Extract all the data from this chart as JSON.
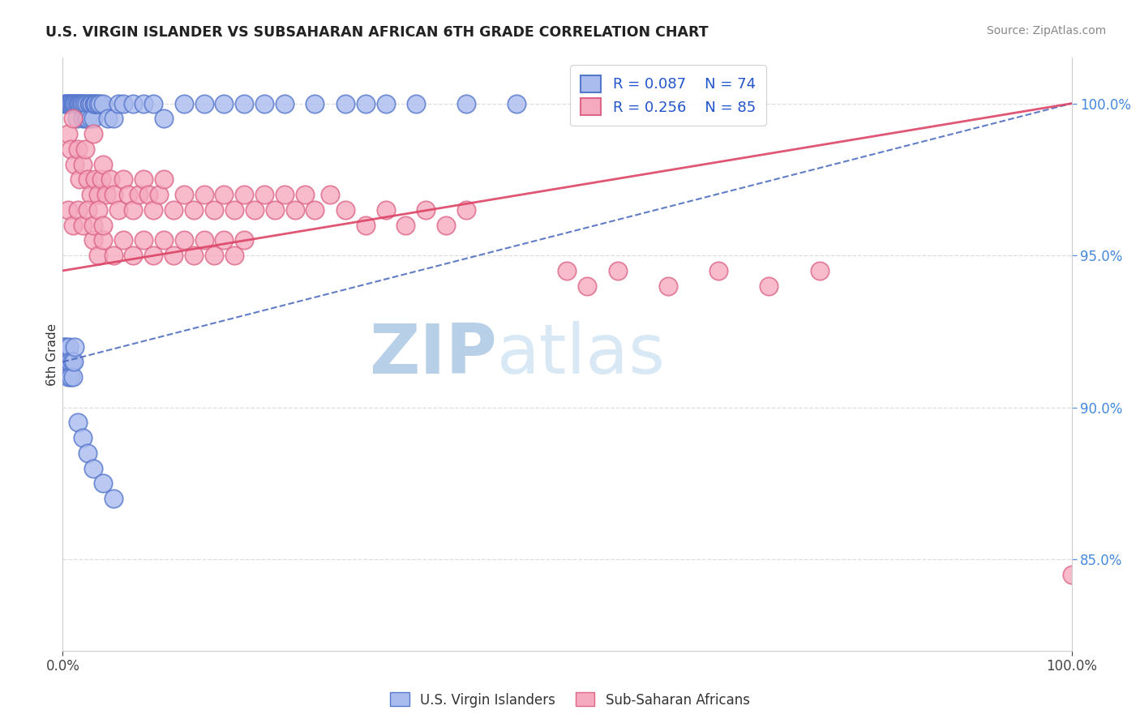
{
  "title": "U.S. VIRGIN ISLANDER VS SUBSAHARAN AFRICAN 6TH GRADE CORRELATION CHART",
  "source": "Source: ZipAtlas.com",
  "ylabel": "6th Grade",
  "right_yticks": [
    85.0,
    90.0,
    95.0,
    100.0
  ],
  "legend_r1": "R = 0.087",
  "legend_n1": "N = 74",
  "legend_r2": "R = 0.256",
  "legend_n2": "N = 85",
  "blue_edge": "#5577cc",
  "blue_face": "#aabbee",
  "pink_edge": "#dd6688",
  "pink_face": "#f5aabf",
  "trend_blue": "#4466bb",
  "trend_pink": "#dd4466",
  "watermark_color": "#ccddf5",
  "grid_color": "#dddddd",
  "background": "#ffffff",
  "blue_x": [
    0.2,
    0.3,
    0.4,
    0.5,
    0.6,
    0.7,
    0.8,
    0.9,
    1.0,
    1.1,
    1.2,
    1.3,
    1.4,
    1.5,
    1.6,
    1.7,
    1.8,
    1.9,
    2.0,
    2.1,
    2.2,
    2.3,
    2.4,
    2.5,
    2.6,
    2.7,
    2.8,
    2.9,
    3.0,
    3.1,
    3.2,
    3.3,
    3.5,
    3.7,
    4.0,
    4.5,
    5.0,
    5.5,
    6.0,
    7.0,
    8.0,
    9.0,
    10.0,
    12.0,
    14.0,
    16.0,
    18.0,
    20.0,
    22.0,
    25.0,
    28.0,
    30.0,
    32.0,
    35.0,
    40.0,
    45.0,
    0.1,
    0.2,
    0.3,
    0.4,
    0.5,
    0.6,
    0.7,
    0.8,
    0.9,
    1.0,
    1.1,
    1.2,
    1.5,
    2.0,
    2.5,
    3.0,
    4.0,
    5.0
  ],
  "blue_y": [
    100.0,
    100.0,
    100.0,
    100.0,
    100.0,
    100.0,
    100.0,
    100.0,
    100.0,
    100.0,
    100.0,
    100.0,
    99.5,
    100.0,
    100.0,
    100.0,
    100.0,
    100.0,
    99.5,
    100.0,
    100.0,
    99.5,
    100.0,
    99.5,
    100.0,
    100.0,
    99.5,
    100.0,
    99.5,
    100.0,
    100.0,
    100.0,
    100.0,
    100.0,
    100.0,
    99.5,
    99.5,
    100.0,
    100.0,
    100.0,
    100.0,
    100.0,
    99.5,
    100.0,
    100.0,
    100.0,
    100.0,
    100.0,
    100.0,
    100.0,
    100.0,
    100.0,
    100.0,
    100.0,
    100.0,
    100.0,
    92.0,
    91.5,
    92.0,
    91.5,
    91.0,
    92.0,
    91.5,
    91.0,
    91.5,
    91.0,
    91.5,
    92.0,
    89.5,
    89.0,
    88.5,
    88.0,
    87.5,
    87.0
  ],
  "pink_x": [
    0.5,
    0.8,
    1.0,
    1.2,
    1.5,
    1.7,
    2.0,
    2.2,
    2.5,
    2.8,
    3.0,
    3.2,
    3.5,
    3.8,
    4.0,
    4.3,
    4.7,
    5.0,
    5.5,
    6.0,
    6.5,
    7.0,
    7.5,
    8.0,
    8.5,
    9.0,
    9.5,
    10.0,
    11.0,
    12.0,
    13.0,
    14.0,
    15.0,
    16.0,
    17.0,
    18.0,
    19.0,
    20.0,
    21.0,
    22.0,
    23.0,
    24.0,
    25.0,
    26.5,
    28.0,
    30.0,
    32.0,
    34.0,
    36.0,
    38.0,
    40.0,
    3.0,
    3.5,
    4.0,
    5.0,
    6.0,
    7.0,
    8.0,
    9.0,
    10.0,
    11.0,
    12.0,
    13.0,
    14.0,
    15.0,
    16.0,
    17.0,
    18.0,
    0.5,
    1.0,
    1.5,
    2.0,
    2.5,
    3.0,
    3.5,
    4.0,
    50.0,
    52.0,
    55.0,
    60.0,
    65.0,
    70.0,
    75.0,
    100.0
  ],
  "pink_y": [
    99.0,
    98.5,
    99.5,
    98.0,
    98.5,
    97.5,
    98.0,
    98.5,
    97.5,
    97.0,
    99.0,
    97.5,
    97.0,
    97.5,
    98.0,
    97.0,
    97.5,
    97.0,
    96.5,
    97.5,
    97.0,
    96.5,
    97.0,
    97.5,
    97.0,
    96.5,
    97.0,
    97.5,
    96.5,
    97.0,
    96.5,
    97.0,
    96.5,
    97.0,
    96.5,
    97.0,
    96.5,
    97.0,
    96.5,
    97.0,
    96.5,
    97.0,
    96.5,
    97.0,
    96.5,
    96.0,
    96.5,
    96.0,
    96.5,
    96.0,
    96.5,
    95.5,
    95.0,
    95.5,
    95.0,
    95.5,
    95.0,
    95.5,
    95.0,
    95.5,
    95.0,
    95.5,
    95.0,
    95.5,
    95.0,
    95.5,
    95.0,
    95.5,
    96.5,
    96.0,
    96.5,
    96.0,
    96.5,
    96.0,
    96.5,
    96.0,
    94.5,
    94.0,
    94.5,
    94.0,
    94.5,
    94.0,
    94.5,
    84.5
  ]
}
